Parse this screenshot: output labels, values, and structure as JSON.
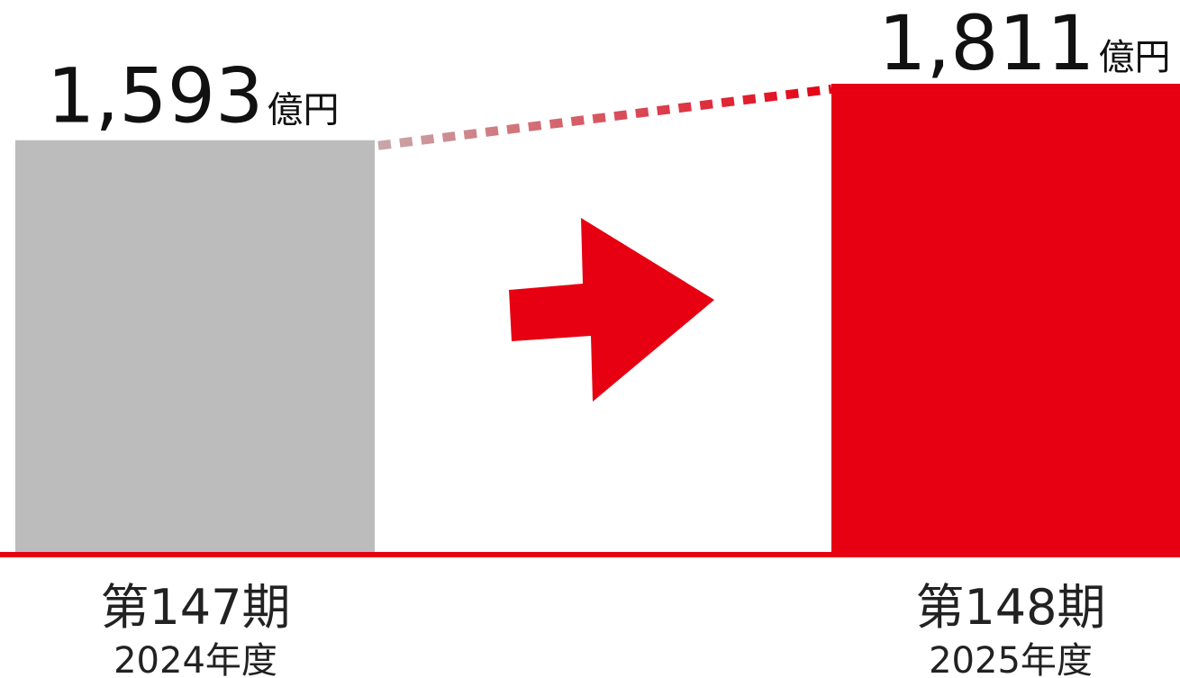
{
  "chart_data": {
    "type": "bar",
    "unit": "億円",
    "categories": [
      {
        "period": "第147期",
        "year": "2024年度"
      },
      {
        "period": "第148期",
        "year": "2025年度"
      }
    ],
    "values": [
      1593,
      1811
    ],
    "value_labels": [
      "1,593",
      "1,811"
    ],
    "ylim": [
      0,
      1811
    ],
    "colors": {
      "bar_2024": "#bcbcbc",
      "bar_2025": "#e60012",
      "baseline": "#e60012",
      "arrow": "#e60012",
      "connector_start": "#c8a7aa",
      "connector_end": "#e60012"
    },
    "annotations": [
      "arrow-right",
      "dashed-connector"
    ]
  }
}
